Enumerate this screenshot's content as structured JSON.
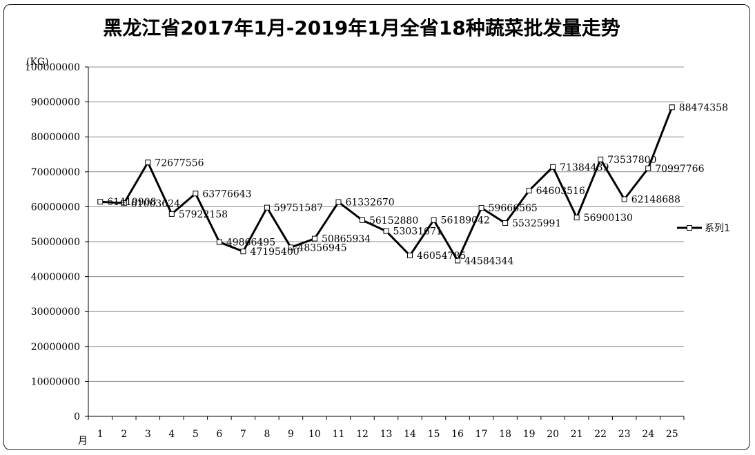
{
  "chart_data": {
    "type": "line",
    "title": "黑龙江省2017年1月-2019年1月全省18种蔬菜批发量走势",
    "ylabel": "(KG)",
    "xlabel": "月",
    "ylim": [
      0,
      100000000
    ],
    "ytick_step": 10000000,
    "grid": true,
    "legend_position": "right",
    "categories": [
      "1",
      "2",
      "3",
      "4",
      "5",
      "6",
      "7",
      "8",
      "9",
      "10",
      "11",
      "12",
      "13",
      "14",
      "15",
      "16",
      "17",
      "18",
      "19",
      "20",
      "21",
      "22",
      "23",
      "24",
      "25"
    ],
    "series": [
      {
        "name": "系列1",
        "color": "#000000",
        "values": [
          61419908,
          61003624,
          72677556,
          57922158,
          63776643,
          49866495,
          47195400,
          59751587,
          48356945,
          50865934,
          61332670,
          56152880,
          53031671,
          46054785,
          56189042,
          44584344,
          59666565,
          55325991,
          64603516,
          71384439,
          56900130,
          73537800,
          62148688,
          70997766,
          88474358
        ]
      }
    ]
  }
}
